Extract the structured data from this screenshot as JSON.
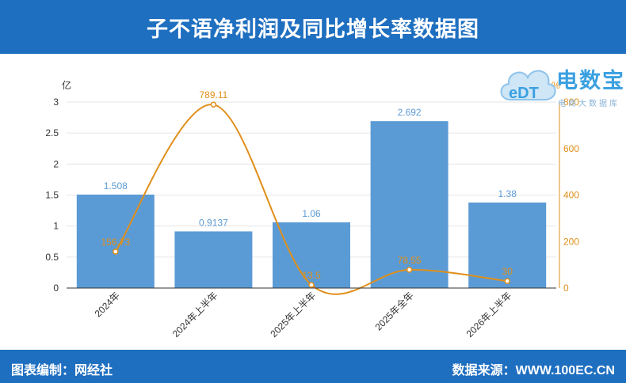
{
  "header": {
    "title": "子不语净利润及同比增长率数据图"
  },
  "footer": {
    "left": "图表编制：网经社",
    "right": "数据来源：WWW.100EC.CN"
  },
  "logo": {
    "brand": "电数宝",
    "sub": "电商大数据库",
    "badge": "eDT"
  },
  "colors": {
    "bar": "#5b9bd5",
    "line": "#e08f1a",
    "header": "#1f6fc0"
  },
  "chart_data": {
    "type": "bar",
    "categories": [
      "2024年",
      "2024年上半年",
      "2025年上半年",
      "2025年全年",
      "2026年上半年"
    ],
    "series": [
      {
        "values": [
          1.508,
          0.9137,
          1.06,
          2.692,
          1.38
        ],
        "labels": [
          "1.508",
          "0.9137",
          "1.06",
          "2.692",
          "1.38"
        ],
        "axis": "left",
        "type": "bar"
      },
      {
        "values": [
          156.73,
          789.11,
          13.5,
          78.55,
          30
        ],
        "labels": [
          "156.73",
          "789.11",
          "13.5",
          "78.55",
          "30"
        ],
        "axis": "right",
        "type": "line"
      }
    ],
    "y_left": {
      "unit": "亿",
      "ticks": [
        "0",
        "0.5",
        "1",
        "1.5",
        "2",
        "2.5",
        "3"
      ],
      "ylim": [
        0,
        3
      ]
    },
    "y_right": {
      "unit": "%",
      "ticks": [
        "0",
        "200",
        "400",
        "600",
        "800"
      ],
      "ylim": [
        0,
        800
      ]
    },
    "grid": true
  }
}
